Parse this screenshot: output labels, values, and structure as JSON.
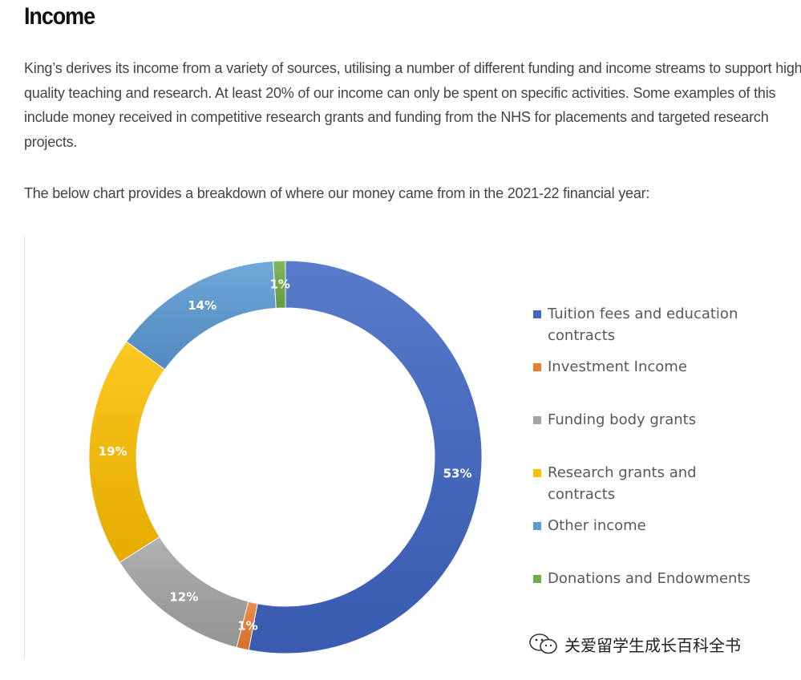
{
  "page": {
    "title": "Income",
    "paragraph1": "King’s derives its income from a variety of sources, utilising a number of different funding and income streams to support high quality teaching and research. At least 20% of our income can only be spent on specific activities. Some examples of this include money received in competitive research grants and funding from the NHS for placements and targeted research projects.",
    "paragraph2": "The below chart provides a breakdown of where our money came from in the 2021-22 financial year:"
  },
  "chart_data": {
    "type": "pie",
    "variant": "donut",
    "legend_position": "right",
    "start_angle_deg": 0,
    "direction": "clockwise",
    "slices": [
      {
        "label": "Tuition fees and education contracts",
        "value": 53,
        "data_label": "53%",
        "color": "#3f66c4"
      },
      {
        "label": "Investment Income",
        "value": 1,
        "data_label": "1%",
        "color": "#ed7d31"
      },
      {
        "label": "Funding body grants",
        "value": 12,
        "data_label": "12%",
        "color": "#a5a5a5"
      },
      {
        "label": "Research grants and contracts",
        "value": 19,
        "data_label": "19%",
        "color": "#ffc000"
      },
      {
        "label": "Other income",
        "value": 14,
        "data_label": "14%",
        "color": "#5b9bd5"
      },
      {
        "label": "Donations and Endowments",
        "value": 1,
        "data_label": "1%",
        "color": "#70ad47"
      }
    ]
  },
  "watermark": {
    "text": "关爱留学生成长百科全书",
    "icon": "wechat-icon"
  }
}
